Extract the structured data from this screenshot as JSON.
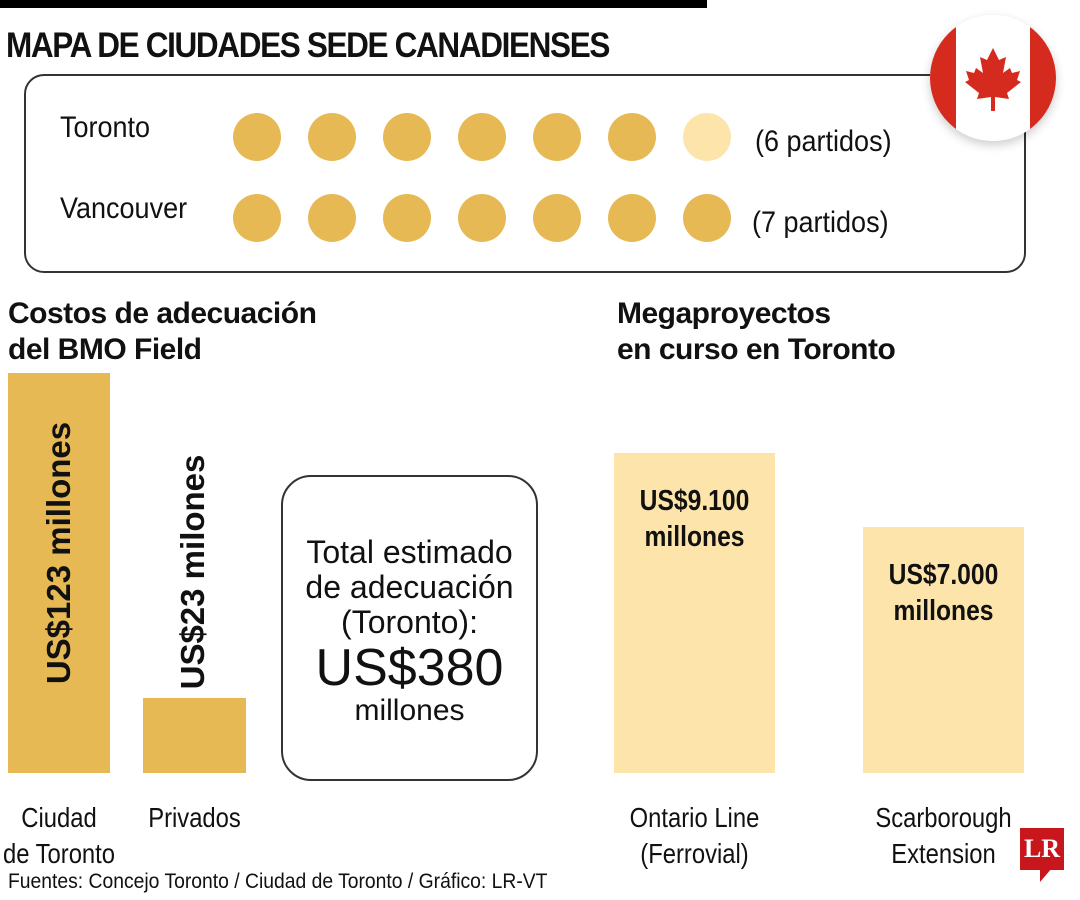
{
  "title": "MAPA DE CIUDADES SEDE CANADIENSES",
  "colors": {
    "gold": "#e7b954",
    "light": "#fde4ab",
    "red": "#d52b1e"
  },
  "flag_icon": "canada-flag-icon",
  "cities": [
    {
      "name": "Toronto",
      "count_label": "(6 partidos)",
      "matches": 6,
      "slots": 7
    },
    {
      "name": "Vancouver",
      "count_label": "(7 partidos)",
      "matches": 7,
      "slots": 7
    }
  ],
  "chart_data": [
    {
      "type": "bar",
      "title": "Costos de adecuación del BMO Field",
      "title_lines": [
        "Costos de adecuación",
        "del BMO Field"
      ],
      "categories": [
        "Ciudad de Toronto",
        "Privados"
      ],
      "category_lines": [
        [
          "Ciudad",
          "de Toronto"
        ],
        [
          "Privados"
        ]
      ],
      "values": [
        123,
        23
      ],
      "unit": "US$ millones",
      "data_labels": [
        "US$123 millones",
        "US$23 milones"
      ],
      "color": "#e7b954"
    },
    {
      "type": "bar",
      "title": "Megaproyectos en curso en Toronto",
      "title_lines": [
        "Megaproyectos",
        "en curso en Toronto"
      ],
      "categories": [
        "Ontario Line (Ferrovial)",
        "Scarborough Extension"
      ],
      "category_lines": [
        [
          "Ontario Line",
          "(Ferrovial)"
        ],
        [
          "Scarborough",
          "Extension"
        ]
      ],
      "values": [
        9100,
        7000
      ],
      "unit": "US$ millones",
      "data_labels": [
        [
          "US$9.100",
          "millones"
        ],
        [
          "US$7.000",
          "millones"
        ]
      ],
      "color": "#fde4ab"
    }
  ],
  "total": {
    "lines": [
      "Total estimado",
      "de adecuación",
      "(Toronto):"
    ],
    "amount": "US$380",
    "unit": "millones"
  },
  "source": "Fuentes: Concejo Toronto / Ciudad de Toronto / Gráfico: LR-VT",
  "logo": "LR"
}
